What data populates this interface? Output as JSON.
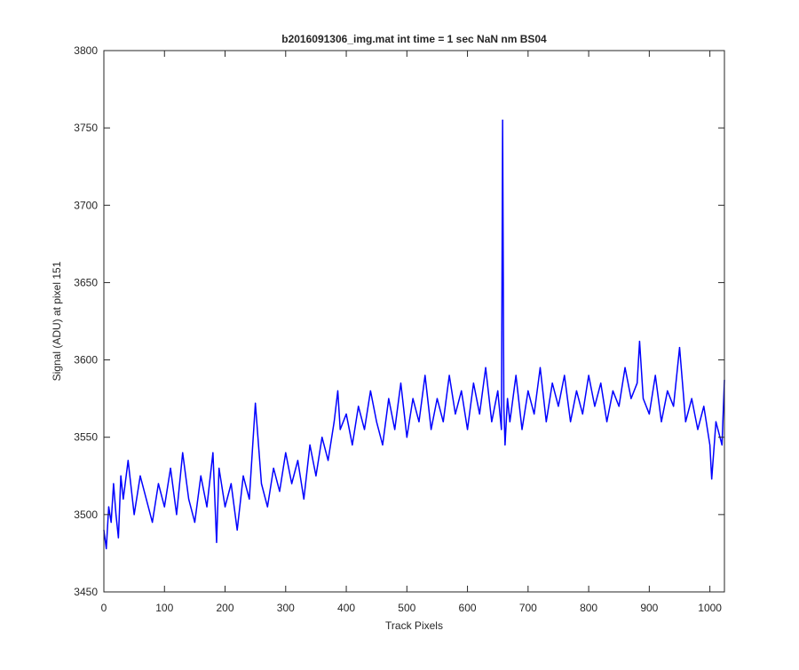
{
  "chart_data": {
    "type": "line",
    "title": "b2016091306_img.mat int time = 1 sec  NaN nm BS04",
    "xlabel": "Track Pixels",
    "ylabel": "Signal (ADU) at pixel 151",
    "xlim": [
      0,
      1024
    ],
    "ylim": [
      3450,
      3800
    ],
    "xticks": [
      0,
      100,
      200,
      300,
      400,
      500,
      600,
      700,
      800,
      900,
      1000
    ],
    "yticks": [
      3450,
      3500,
      3550,
      3600,
      3650,
      3700,
      3750,
      3800
    ],
    "grid": false,
    "line_color": "#0000ff",
    "series": [
      {
        "x": [
          0,
          4,
          8,
          12,
          16,
          20,
          24,
          28,
          32,
          40,
          50,
          60,
          70,
          80,
          90,
          100,
          110,
          120,
          130,
          140,
          150,
          160,
          170,
          180,
          186,
          190,
          200,
          210,
          220,
          230,
          240,
          250,
          260,
          270,
          280,
          290,
          300,
          310,
          320,
          330,
          340,
          350,
          360,
          370,
          380,
          386,
          390,
          400,
          410,
          420,
          430,
          440,
          450,
          460,
          470,
          480,
          490,
          500,
          510,
          520,
          530,
          540,
          550,
          560,
          570,
          580,
          590,
          600,
          610,
          620,
          630,
          640,
          650,
          656,
          658,
          660,
          662,
          666,
          670,
          680,
          690,
          700,
          710,
          720,
          730,
          740,
          750,
          760,
          770,
          780,
          790,
          800,
          810,
          820,
          830,
          840,
          850,
          860,
          870,
          880,
          884,
          890,
          900,
          910,
          920,
          930,
          940,
          950,
          960,
          970,
          980,
          990,
          1000,
          1003,
          1010,
          1020,
          1024
        ],
        "y": [
          3490,
          3478,
          3505,
          3495,
          3520,
          3500,
          3485,
          3525,
          3510,
          3535,
          3500,
          3525,
          3510,
          3495,
          3520,
          3505,
          3530,
          3500,
          3540,
          3510,
          3495,
          3525,
          3505,
          3540,
          3482,
          3530,
          3505,
          3520,
          3490,
          3525,
          3510,
          3572,
          3520,
          3505,
          3530,
          3515,
          3540,
          3520,
          3535,
          3510,
          3545,
          3525,
          3550,
          3535,
          3560,
          3580,
          3555,
          3565,
          3545,
          3570,
          3555,
          3580,
          3560,
          3545,
          3575,
          3555,
          3585,
          3550,
          3575,
          3560,
          3590,
          3555,
          3575,
          3560,
          3590,
          3565,
          3580,
          3555,
          3585,
          3565,
          3595,
          3560,
          3580,
          3555,
          3755,
          3570,
          3545,
          3575,
          3560,
          3590,
          3555,
          3580,
          3565,
          3595,
          3560,
          3585,
          3570,
          3590,
          3560,
          3580,
          3565,
          3590,
          3570,
          3585,
          3560,
          3580,
          3570,
          3595,
          3575,
          3585,
          3612,
          3575,
          3565,
          3590,
          3560,
          3580,
          3570,
          3608,
          3560,
          3575,
          3555,
          3570,
          3545,
          3523,
          3560,
          3545,
          3587
        ]
      }
    ]
  }
}
